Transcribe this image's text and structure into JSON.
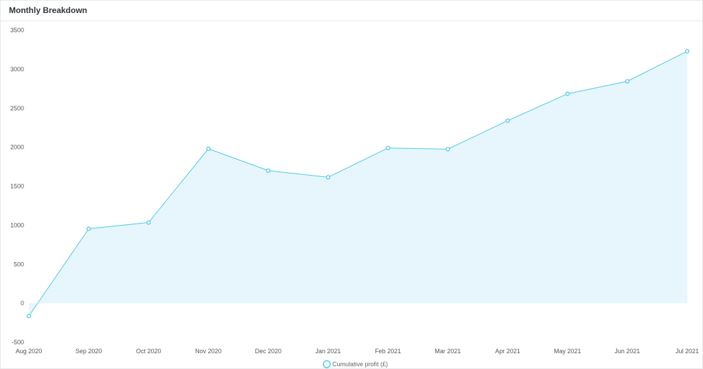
{
  "header": {
    "title": "Monthly Breakdown"
  },
  "chart_data": {
    "type": "line",
    "categories": [
      "Aug 2020",
      "Sep 2020",
      "Oct 2020",
      "Nov 2020",
      "Dec 2020",
      "Jan 2021",
      "Feb 2021",
      "Mar 2021",
      "Apr 2021",
      "May 2021",
      "Jun 2021",
      "Jul 2021"
    ],
    "series": [
      {
        "name": "Cumulative profit (£)",
        "values": [
          -165,
          955,
          1035,
          1980,
          1700,
          1615,
          1990,
          1975,
          2340,
          2685,
          2845,
          3230
        ]
      }
    ],
    "yticks": [
      3500,
      3000,
      2500,
      2000,
      1500,
      1000,
      500,
      0,
      -500
    ],
    "ylim": [
      -500,
      3500
    ],
    "title": "",
    "xlabel": "",
    "ylabel": "",
    "legend_position": "bottom-center",
    "fill_area": true,
    "grid": false,
    "colors": {
      "line": "#4dc9e6",
      "fill": "#e6f6fc",
      "marker_fill": "#ffffff"
    }
  }
}
